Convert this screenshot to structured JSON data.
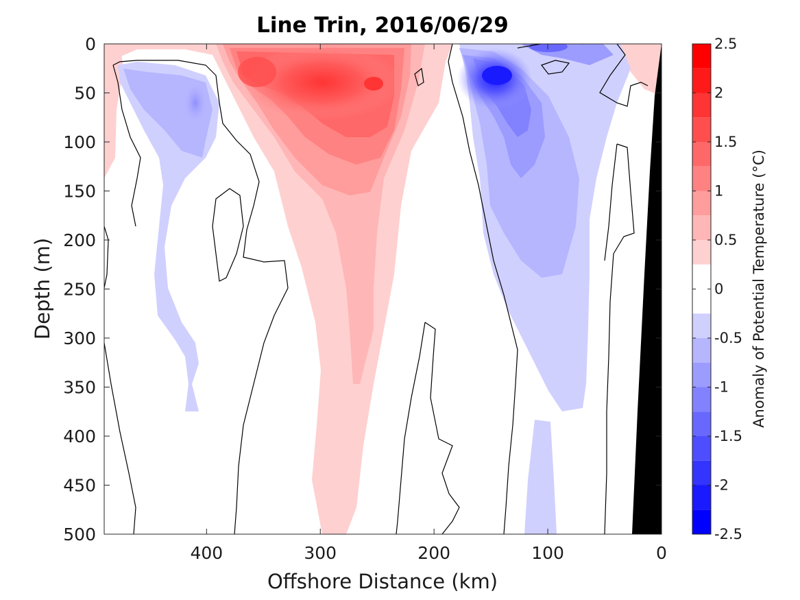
{
  "chart_data": {
    "type": "heatmap",
    "title": "Line Trin, 2016/06/29",
    "xlabel": "Offshore Distance (km)",
    "ylabel": "Depth (m)",
    "xlim": [
      490,
      0
    ],
    "ylim": [
      0,
      500
    ],
    "x_ticks": [
      "400",
      "300",
      "200",
      "100",
      "0"
    ],
    "x_tick_values": [
      400,
      300,
      200,
      100,
      0
    ],
    "y_ticks": [
      "0",
      "50",
      "100",
      "150",
      "200",
      "250",
      "300",
      "350",
      "400",
      "450",
      "500"
    ],
    "y_tick_values": [
      0,
      50,
      100,
      150,
      200,
      250,
      300,
      350,
      400,
      450,
      500
    ],
    "colorbar": {
      "label": "Anomaly of Potential Temperature (°C)",
      "range": [
        -2.5,
        2.5
      ],
      "ticks": [
        "2.5",
        "2",
        "1.5",
        "1",
        "0.5",
        "0",
        "-0.5",
        "-1",
        "-1.5",
        "-2",
        "-2.5"
      ],
      "tick_values": [
        2.5,
        2,
        1.5,
        1,
        0.5,
        0,
        -0.5,
        -1,
        -1.5,
        -2,
        -2.5
      ],
      "levels": [
        {
          "from": 2.25,
          "to": 2.5,
          "color": "#ff0000"
        },
        {
          "from": 2.0,
          "to": 2.25,
          "color": "#ff1a1a"
        },
        {
          "from": 1.75,
          "to": 2.0,
          "color": "#ff3434"
        },
        {
          "from": 1.5,
          "to": 1.75,
          "color": "#ff4e4e"
        },
        {
          "from": 1.25,
          "to": 1.5,
          "color": "#ff6868"
        },
        {
          "from": 1.0,
          "to": 1.25,
          "color": "#ff8282"
        },
        {
          "from": 0.75,
          "to": 1.0,
          "color": "#ff9c9c"
        },
        {
          "from": 0.5,
          "to": 0.75,
          "color": "#ffb6b6"
        },
        {
          "from": 0.25,
          "to": 0.5,
          "color": "#ffd0d0"
        },
        {
          "from": 0.0,
          "to": 0.25,
          "color": "#ffffff"
        },
        {
          "from": -0.25,
          "to": 0.0,
          "color": "#ffffff"
        },
        {
          "from": -0.5,
          "to": -0.25,
          "color": "#d0d0ff"
        },
        {
          "from": -0.75,
          "to": -0.5,
          "color": "#b6b6ff"
        },
        {
          "from": -1.0,
          "to": -0.75,
          "color": "#9c9cff"
        },
        {
          "from": -1.25,
          "to": -1.0,
          "color": "#8282ff"
        },
        {
          "from": -1.5,
          "to": -1.25,
          "color": "#6868ff"
        },
        {
          "from": -1.75,
          "to": -1.5,
          "color": "#4e4eff"
        },
        {
          "from": -2.0,
          "to": -1.75,
          "color": "#3434ff"
        },
        {
          "from": -2.25,
          "to": -2.0,
          "color": "#1a1aff"
        },
        {
          "from": -2.5,
          "to": -2.25,
          "color": "#0000ff"
        }
      ]
    },
    "features": [
      {
        "name": "warm core",
        "center_km": 280,
        "center_depth_m": 60,
        "max_anomaly": 1.9
      },
      {
        "name": "warm tongue",
        "offshore_km_range": [
          300,
          240
        ],
        "depth_range_m": [
          0,
          495
        ],
        "anomaly": 0.4
      },
      {
        "name": "cold core nearshore",
        "center_km": 145,
        "center_depth_m": 35,
        "min_anomaly": -2.1
      },
      {
        "name": "cold band nearshore",
        "offshore_km_range": [
          170,
          40
        ],
        "depth_range_m": [
          0,
          500
        ],
        "anomaly": -0.4
      },
      {
        "name": "cold patch offshore",
        "center_km": 430,
        "center_depth_m": 70,
        "min_anomaly": -0.9
      }
    ],
    "bathymetry_fill": "#000000",
    "contour_color": "#000000"
  }
}
